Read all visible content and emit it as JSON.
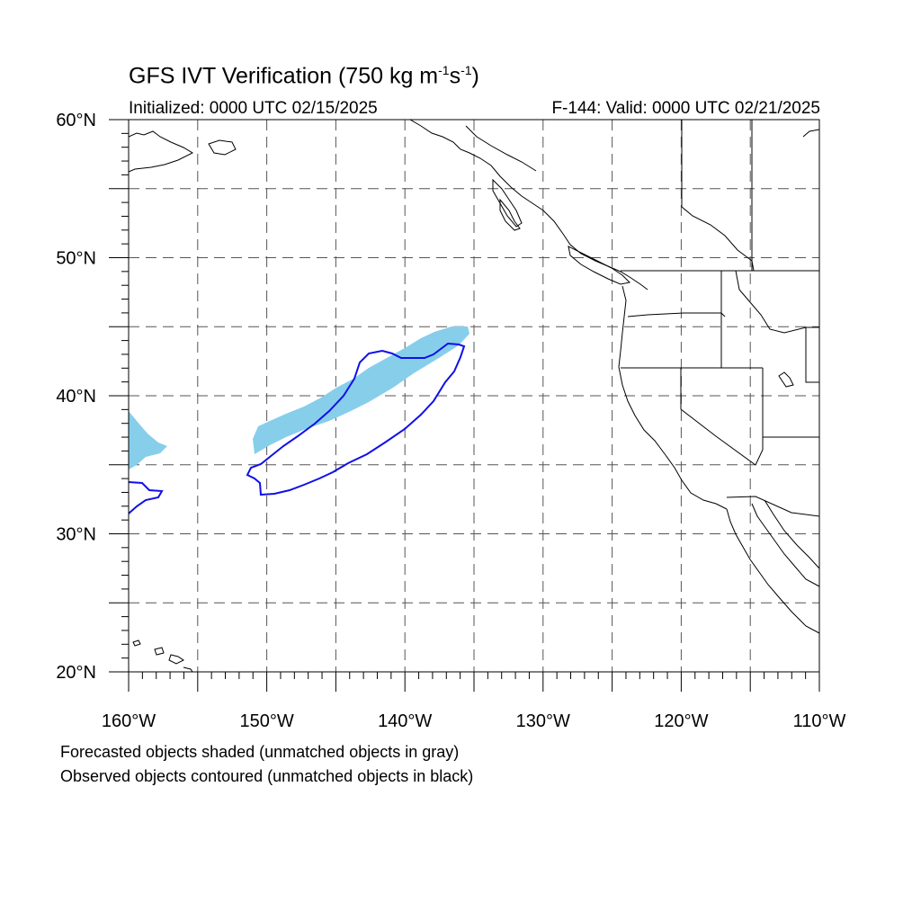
{
  "title": {
    "main": "GFS IVT Verification (750 kg m",
    "exp1": "-1",
    "mid": "s",
    "exp2": "-1",
    "end": ")"
  },
  "init_label": "Initialized: 0000 UTC 02/15/2025",
  "valid_label": "F-144: Valid: 0000 UTC 02/21/2025",
  "lat_labels": [
    "60°N",
    "50°N",
    "40°N",
    "30°N",
    "20°N"
  ],
  "lon_labels": [
    "160°W",
    "150°W",
    "140°W",
    "130°W",
    "120°W",
    "110°W"
  ],
  "captions": [
    "Forecasted objects shaded (unmatched objects in gray)",
    "Observed objects contoured (unmatched objects in black)"
  ],
  "colors": {
    "forecast_fill": "#87ceeb",
    "observed_contour": "#1010e8",
    "coastline": "#000000",
    "grid": "#555555"
  },
  "map": {
    "lon_range": [
      -160,
      -110
    ],
    "lat_range": [
      20,
      60
    ],
    "grid_step_deg": 5,
    "label_step_deg": 10,
    "grid_style": "dashed"
  }
}
